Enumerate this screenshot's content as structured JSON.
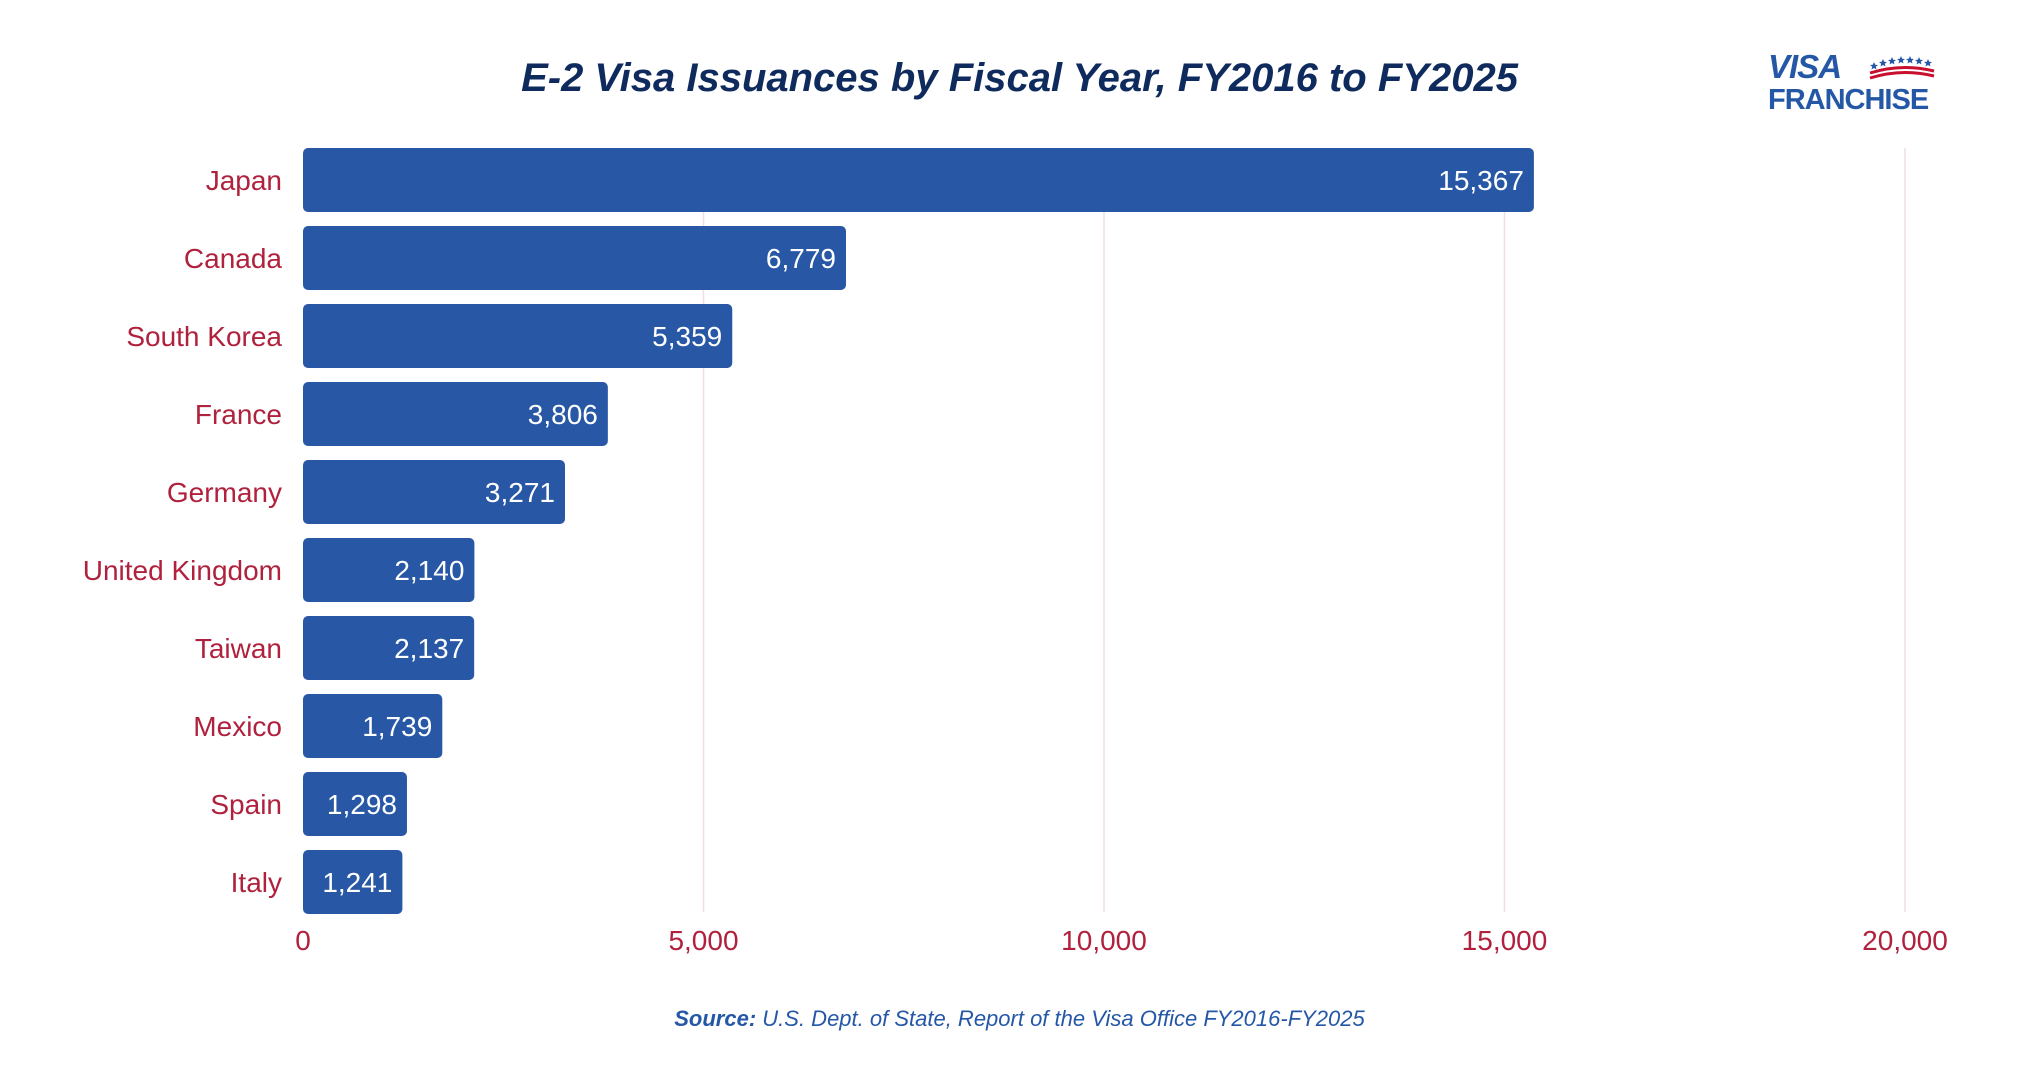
{
  "chart_data": {
    "type": "bar",
    "orientation": "horizontal",
    "title": "E-2 Visa Issuances by Fiscal Year, FY2016 to FY2025",
    "categories": [
      "Japan",
      "Canada",
      "South Korea",
      "France",
      "Germany",
      "United Kingdom",
      "Taiwan",
      "Mexico",
      "Spain",
      "Italy"
    ],
    "values": [
      15367,
      6779,
      5359,
      3806,
      3271,
      2140,
      2137,
      1739,
      1298,
      1241
    ],
    "data_labels": [
      "15,367",
      "6,779",
      "5,359",
      "3,806",
      "3,271",
      "2,140",
      "2,137",
      "1,739",
      "1,298",
      "1,241"
    ],
    "xlim": [
      0,
      20000
    ],
    "x_ticks": [
      0,
      5000,
      10000,
      15000,
      20000
    ],
    "x_tick_labels": [
      "0",
      "5,000",
      "10,000",
      "15,000",
      "20,000"
    ],
    "xlabel": "",
    "ylabel": "",
    "grid": "vertical",
    "legend": "none"
  },
  "source": {
    "label": "Source:",
    "text": "U.S. Dept. of State, Report of the Visa Office FY2016-FY2025"
  },
  "logo": {
    "line1": "VISA",
    "line2": "FRANCHISE"
  },
  "colors": {
    "bar": "#2858a5",
    "category_label": "#b0213d",
    "tick_label": "#b0213d",
    "title": "#0f2a5c",
    "gridline": "#f2dde2",
    "data_label": "#ffffff",
    "source": "#2557a7",
    "logo_blue": "#2557a7",
    "logo_red": "#c8102e"
  }
}
